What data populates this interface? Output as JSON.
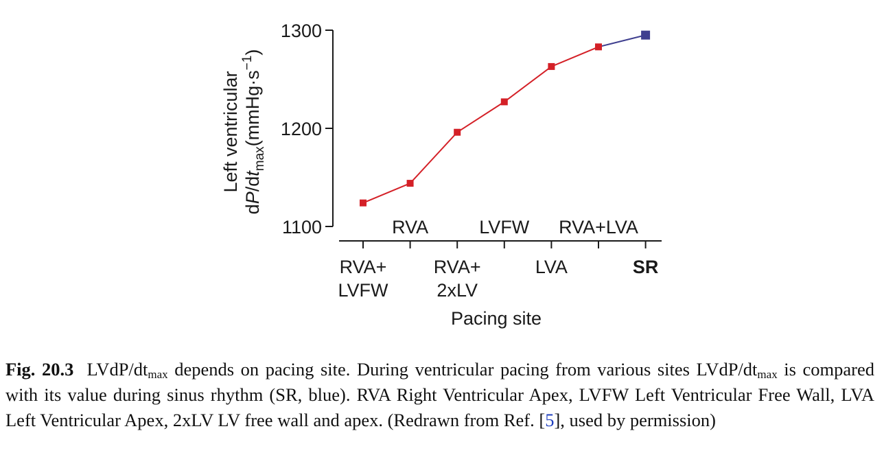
{
  "chart_data": {
    "type": "line",
    "ylim": [
      1100,
      1300
    ],
    "yticks": [
      1100,
      1200,
      1300
    ],
    "ylabel_line1": "Left ventricular",
    "ylabel_line2": {
      "pre": "d",
      "italic_p": "P",
      "mid": "/d",
      "italic_t": "t",
      "sub": "max",
      "post": "(mmHg·s",
      "sup": "−1",
      "end": ")"
    },
    "xlabel": "Pacing site",
    "categories": [
      "RVA+ LVFW",
      "RVA",
      "RVA+ 2xLV",
      "LVFW",
      "LVA",
      "RVA+LVA",
      "SR"
    ],
    "category_labels": [
      {
        "lines": [
          "RVA+",
          "LVFW"
        ],
        "row": "bottom"
      },
      {
        "lines": [
          "RVA"
        ],
        "row": "top"
      },
      {
        "lines": [
          "RVA+",
          "2xLV"
        ],
        "row": "bottom"
      },
      {
        "lines": [
          "LVFW"
        ],
        "row": "top"
      },
      {
        "lines": [
          "LVA"
        ],
        "row": "bottom"
      },
      {
        "lines": [
          "RVA+LVA"
        ],
        "row": "top"
      },
      {
        "lines": [
          "SR"
        ],
        "row": "bottom"
      }
    ],
    "values": [
      1124,
      1144,
      1196,
      1227,
      1263,
      1283,
      1295
    ],
    "grid": false,
    "colors": {
      "paced": "#d42027",
      "sinus": "#3f3f8f",
      "axis": "#1a1a1a"
    }
  },
  "caption": {
    "label": "Fig. 20.3",
    "t1": "LVdP/dt",
    "t1_sub": "max",
    "t2": " depends on pacing site. During ventricular pacing from various sites LVdP/dt",
    "t2_sub": "max",
    "t3": " is compared with its value during sinus rhythm (SR, blue). RVA Right Ventricular Apex, LVFW Left Ventricular Free Wall, LVA Left Ventricular Apex, 2xLV LV free wall and apex. (Redrawn from Ref. [",
    "ref": "5",
    "t4": "], used by permission)"
  }
}
